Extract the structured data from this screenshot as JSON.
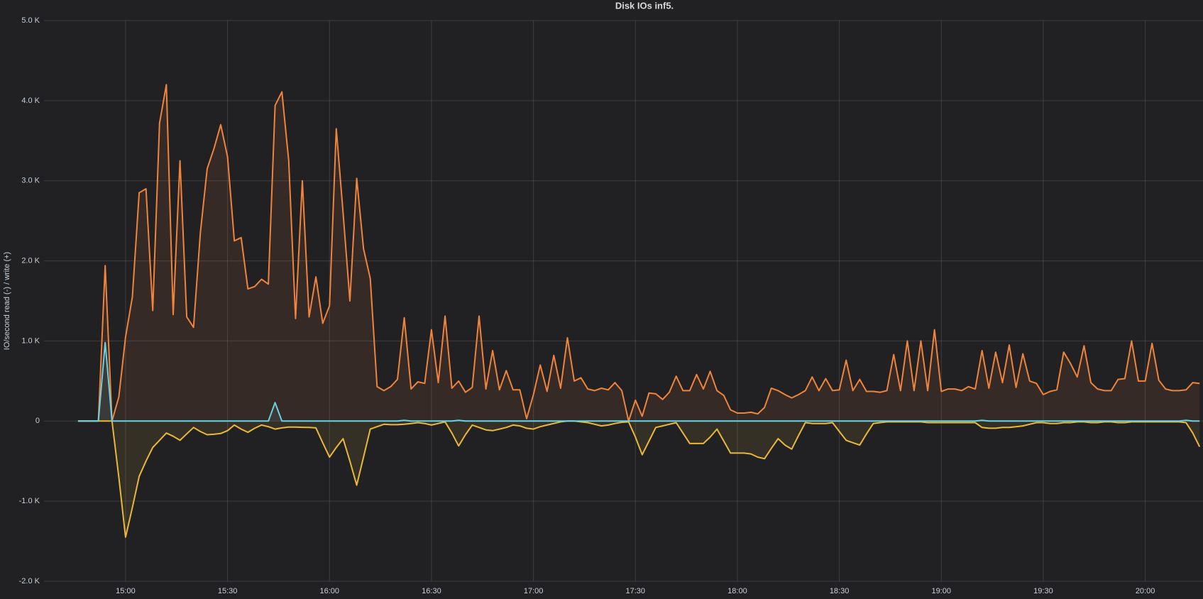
{
  "chart_data": {
    "type": "line",
    "title": "Disk IOs inf5.",
    "y_label": "IO/second read (-) / write (+)",
    "x": [
      "14:46",
      "14:48",
      "14:50",
      "14:52",
      "14:54",
      "14:56",
      "14:58",
      "15:00",
      "15:02",
      "15:04",
      "15:06",
      "15:08",
      "15:10",
      "15:12",
      "15:14",
      "15:16",
      "15:18",
      "15:20",
      "15:22",
      "15:24",
      "15:26",
      "15:28",
      "15:30",
      "15:32",
      "15:34",
      "15:36",
      "15:38",
      "15:40",
      "15:42",
      "15:44",
      "15:46",
      "15:48",
      "15:50",
      "15:52",
      "15:54",
      "15:56",
      "15:58",
      "16:00",
      "16:02",
      "16:04",
      "16:06",
      "16:08",
      "16:10",
      "16:12",
      "16:14",
      "16:16",
      "16:18",
      "16:20",
      "16:22",
      "16:24",
      "16:26",
      "16:28",
      "16:30",
      "16:32",
      "16:34",
      "16:36",
      "16:38",
      "16:40",
      "16:42",
      "16:44",
      "16:46",
      "16:48",
      "16:50",
      "16:52",
      "16:54",
      "16:56",
      "16:58",
      "17:00",
      "17:02",
      "17:04",
      "17:06",
      "17:08",
      "17:10",
      "17:12",
      "17:14",
      "17:16",
      "17:18",
      "17:20",
      "17:22",
      "17:24",
      "17:26",
      "17:28",
      "17:30",
      "17:32",
      "17:34",
      "17:36",
      "17:38",
      "17:40",
      "17:42",
      "17:44",
      "17:46",
      "17:48",
      "17:50",
      "17:52",
      "17:54",
      "17:56",
      "17:58",
      "18:00",
      "18:02",
      "18:04",
      "18:06",
      "18:08",
      "18:10",
      "18:12",
      "18:14",
      "18:16",
      "18:18",
      "18:20",
      "18:22",
      "18:24",
      "18:26",
      "18:28",
      "18:30",
      "18:32",
      "18:34",
      "18:36",
      "18:38",
      "18:40",
      "18:42",
      "18:44",
      "18:46",
      "18:48",
      "18:50",
      "18:52",
      "18:54",
      "18:56",
      "18:58",
      "19:00",
      "19:02",
      "19:04",
      "19:06",
      "19:08",
      "19:10",
      "19:12",
      "19:14",
      "19:16",
      "19:18",
      "19:20",
      "19:22",
      "19:24",
      "19:26",
      "19:28",
      "19:30",
      "19:32",
      "19:34",
      "19:36",
      "19:38",
      "19:40",
      "19:42",
      "19:44",
      "19:46",
      "19:48",
      "19:50",
      "19:52",
      "19:54",
      "19:56",
      "19:58",
      "20:00",
      "20:02",
      "20:04",
      "20:06",
      "20:08",
      "20:10",
      "20:12",
      "20:14",
      "20:16"
    ],
    "series": [
      {
        "color": "#ef843c",
        "values": [
          0,
          0,
          0,
          0,
          1940,
          0,
          300,
          1050,
          1550,
          2850,
          2900,
          1380,
          3720,
          4200,
          1330,
          3250,
          1300,
          1170,
          2350,
          3150,
          3400,
          3700,
          3300,
          2250,
          2290,
          1650,
          1680,
          1770,
          1710,
          3940,
          4110,
          3250,
          1280,
          3000,
          1300,
          1800,
          1220,
          1440,
          3650,
          2600,
          1500,
          3030,
          2150,
          1780,
          430,
          380,
          430,
          520,
          1290,
          400,
          490,
          470,
          1140,
          480,
          1310,
          410,
          500,
          360,
          420,
          1310,
          400,
          880,
          390,
          630,
          390,
          390,
          30,
          330,
          700,
          370,
          820,
          410,
          1040,
          500,
          540,
          400,
          380,
          410,
          390,
          480,
          380,
          0,
          260,
          60,
          350,
          340,
          270,
          360,
          560,
          380,
          380,
          580,
          400,
          620,
          380,
          320,
          140,
          100,
          100,
          110,
          90,
          170,
          410,
          380,
          330,
          290,
          330,
          380,
          550,
          380,
          530,
          380,
          390,
          760,
          380,
          520,
          370,
          370,
          360,
          380,
          830,
          380,
          1000,
          380,
          1000,
          380,
          1140,
          370,
          400,
          400,
          380,
          430,
          400,
          880,
          410,
          860,
          480,
          950,
          420,
          840,
          500,
          470,
          330,
          370,
          390,
          860,
          720,
          550,
          940,
          480,
          400,
          380,
          380,
          520,
          530,
          1000,
          500,
          500,
          970,
          510,
          400,
          380,
          380,
          390,
          480,
          470
        ]
      },
      {
        "color": "#eab839",
        "values": [
          0,
          0,
          0,
          0,
          0,
          0,
          -700,
          -1450,
          -1080,
          -690,
          -500,
          -330,
          -240,
          -150,
          -190,
          -240,
          -160,
          -80,
          -130,
          -170,
          -165,
          -155,
          -120,
          -50,
          -100,
          -140,
          -90,
          -50,
          -70,
          -100,
          -85,
          -75,
          -75,
          -78,
          -80,
          -85,
          -270,
          -450,
          -330,
          -220,
          -500,
          -800,
          -450,
          -100,
          -70,
          -40,
          -45,
          -45,
          -40,
          -30,
          -20,
          -30,
          -50,
          -30,
          -10,
          -150,
          -310,
          -170,
          -50,
          -80,
          -110,
          -120,
          -100,
          -80,
          -50,
          -60,
          -90,
          -100,
          -70,
          -50,
          -30,
          -10,
          0,
          0,
          -10,
          -20,
          -40,
          -60,
          -50,
          -30,
          -15,
          -10,
          -200,
          -420,
          -250,
          -80,
          -60,
          -40,
          -20,
          -150,
          -280,
          -280,
          -280,
          -200,
          -100,
          -250,
          -400,
          -400,
          -400,
          -410,
          -450,
          -470,
          -340,
          -220,
          -300,
          -350,
          -180,
          -20,
          -30,
          -30,
          -30,
          -20,
          -130,
          -240,
          -270,
          -300,
          -160,
          -30,
          -20,
          -10,
          -10,
          -10,
          -10,
          -10,
          -10,
          -20,
          -20,
          -20,
          -20,
          -20,
          -20,
          -20,
          -20,
          -80,
          -90,
          -90,
          -80,
          -80,
          -70,
          -60,
          -40,
          -20,
          -20,
          -30,
          -30,
          -20,
          -20,
          -10,
          -10,
          -20,
          -20,
          -10,
          -10,
          -20,
          -20,
          -10,
          -10,
          -10,
          -10,
          -10,
          -10,
          -10,
          -10,
          -20,
          -150,
          -320
        ]
      },
      {
        "color": "#6ed0e0",
        "values": [
          0,
          0,
          0,
          0,
          980,
          0,
          0,
          0,
          0,
          0,
          0,
          0,
          0,
          0,
          0,
          0,
          0,
          0,
          0,
          0,
          0,
          0,
          0,
          0,
          0,
          0,
          0,
          0,
          0,
          230,
          0,
          0,
          0,
          0,
          0,
          0,
          0,
          0,
          0,
          0,
          0,
          0,
          0,
          0,
          0,
          0,
          0,
          0,
          10,
          0,
          0,
          0,
          0,
          0,
          0,
          0,
          10,
          0,
          0,
          0,
          0,
          0,
          0,
          0,
          0,
          0,
          0,
          0,
          0,
          0,
          0,
          0,
          0,
          0,
          0,
          0,
          0,
          0,
          0,
          0,
          0,
          0,
          0,
          0,
          0,
          0,
          0,
          0,
          0,
          0,
          0,
          0,
          0,
          0,
          0,
          0,
          0,
          0,
          0,
          0,
          0,
          0,
          0,
          0,
          0,
          0,
          0,
          0,
          0,
          0,
          0,
          0,
          0,
          0,
          0,
          0,
          0,
          0,
          0,
          0,
          0,
          0,
          0,
          0,
          0,
          0,
          0,
          0,
          0,
          0,
          0,
          0,
          0,
          10,
          0,
          0,
          0,
          0,
          0,
          0,
          0,
          0,
          0,
          0,
          0,
          0,
          0,
          0,
          0,
          0,
          0,
          0,
          0,
          0,
          0,
          0,
          0,
          0,
          0,
          0,
          0,
          0,
          0,
          10,
          0,
          0
        ]
      }
    ],
    "xlim": [
      "14:36",
      "20:17"
    ],
    "xticks": [
      "15:00",
      "15:30",
      "16:00",
      "16:30",
      "17:00",
      "17:30",
      "18:00",
      "18:30",
      "19:00",
      "19:30",
      "20:00"
    ],
    "ylim": [
      -2000,
      5000
    ],
    "yticks": [
      {
        "value": -2000,
        "label": "-2.0 K"
      },
      {
        "value": -1000,
        "label": "-1.0 K"
      },
      0,
      {
        "value": 1000,
        "label": "1.0 K"
      },
      {
        "value": 2000,
        "label": "2.0 K"
      },
      {
        "value": 3000,
        "label": "3.0 K"
      },
      {
        "value": 4000,
        "label": "4.0 K"
      },
      {
        "value": 5000,
        "label": "5.0 K"
      }
    ],
    "grid": true,
    "fill_opacity": 0.1
  }
}
